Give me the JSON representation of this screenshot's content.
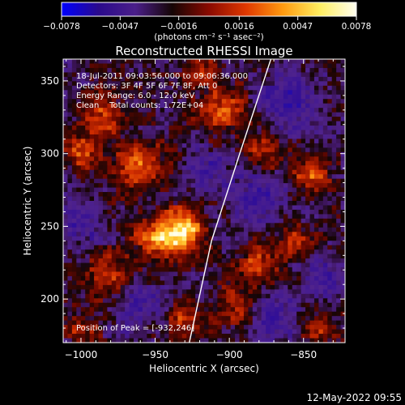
{
  "chart_data": {
    "type": "heatmap",
    "title": "Reconstructed RHESSI Image",
    "xlabel": "Heliocentric X (arcsec)",
    "ylabel": "Heliocentric Y (arcsec)",
    "xlim": [
      -1012,
      -822
    ],
    "ylim": [
      170,
      365
    ],
    "x_ticks": [
      -1000,
      -950,
      -900,
      -850
    ],
    "y_ticks": [
      200,
      250,
      300,
      350
    ],
    "x_tick_labels": [
      "−1000",
      "−950",
      "−900",
      "−850"
    ],
    "y_tick_labels": [
      "200",
      "250",
      "300",
      "350"
    ],
    "colorbar": {
      "min": -0.0078,
      "max": 0.0078,
      "ticks": [
        -0.0078,
        -0.0047,
        -0.0016,
        0.0016,
        0.0047,
        0.0078
      ],
      "tick_labels": [
        "−0.0078",
        "−0.0047",
        "−0.0016",
        "0.0016",
        "0.0047",
        "0.0078"
      ],
      "unit_label": "(photons cm⁻² s⁻¹ asec⁻²)",
      "colors": [
        "#0000ff",
        "#2a0a8c",
        "#4b1f8a",
        "#150505",
        "#8a0a00",
        "#e03800",
        "#ff9a10",
        "#ffee60",
        "#fffff0"
      ]
    },
    "annotations": [
      "18-Jul-2011 09:03:56.000 to 09:06:36.000",
      "Detectors: 3F 4F 5F 6F 7F 8F, Att 0",
      "Energy Range: 6.0 - 12.0 keV",
      "Clean    Total counts: 1.72E+04"
    ],
    "peak_label": "Position of Peak = [-932,246]",
    "peak": [
      -932,
      246
    ],
    "limb": [
      [
        -927,
        170
      ],
      [
        -912,
        240
      ],
      [
        -893,
        300
      ],
      [
        -872,
        365
      ]
    ],
    "blobs": [
      {
        "x": -932,
        "y": 246,
        "amp": 0.0078,
        "r": 11
      },
      {
        "x": -951,
        "y": 243,
        "amp": 0.004,
        "r": 10
      },
      {
        "x": -960,
        "y": 290,
        "amp": 0.0046,
        "r": 12
      },
      {
        "x": -985,
        "y": 325,
        "amp": 0.0044,
        "r": 11
      },
      {
        "x": -1000,
        "y": 300,
        "amp": 0.0036,
        "r": 9
      },
      {
        "x": -905,
        "y": 330,
        "amp": 0.0042,
        "r": 12
      },
      {
        "x": -875,
        "y": 300,
        "amp": 0.0038,
        "r": 9
      },
      {
        "x": -845,
        "y": 285,
        "amp": 0.005,
        "r": 8
      },
      {
        "x": -880,
        "y": 225,
        "amp": 0.0042,
        "r": 10
      },
      {
        "x": -855,
        "y": 240,
        "amp": 0.0034,
        "r": 8
      },
      {
        "x": -980,
        "y": 215,
        "amp": 0.0042,
        "r": 11
      },
      {
        "x": -930,
        "y": 185,
        "amp": 0.0036,
        "r": 10
      },
      {
        "x": -895,
        "y": 195,
        "amp": 0.0032,
        "r": 10
      },
      {
        "x": -840,
        "y": 180,
        "amp": 0.0032,
        "r": 8
      },
      {
        "x": -1000,
        "y": 180,
        "amp": 0.003,
        "r": 8
      },
      {
        "x": -920,
        "y": 360,
        "amp": 0.0038,
        "r": 8
      },
      {
        "x": -860,
        "y": 335,
        "amp": -0.0034,
        "r": 14
      },
      {
        "x": -880,
        "y": 270,
        "amp": -0.0028,
        "r": 14
      },
      {
        "x": -915,
        "y": 290,
        "amp": -0.0026,
        "r": 10
      },
      {
        "x": -960,
        "y": 195,
        "amp": -0.0028,
        "r": 12
      },
      {
        "x": -870,
        "y": 185,
        "amp": -0.003,
        "r": 12
      },
      {
        "x": -1000,
        "y": 250,
        "amp": -0.0024,
        "r": 10
      },
      {
        "x": -835,
        "y": 215,
        "amp": -0.0026,
        "r": 10
      }
    ]
  },
  "footer": {
    "timestamp": "12-May-2022 09:55"
  }
}
